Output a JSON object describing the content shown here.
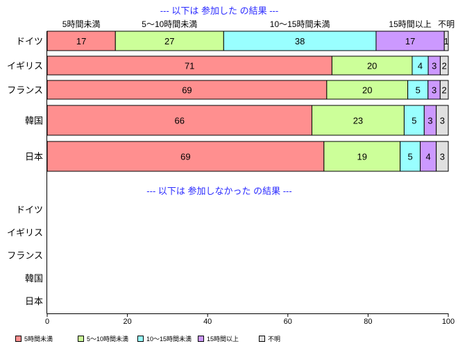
{
  "title_color": "#2B2BFF",
  "chart_data": [
    {
      "type": "bar",
      "horizontal": true,
      "stacked": true,
      "title": "--- 以下は 参加した の結果 ---",
      "categories": [
        "ドイツ",
        "イギリス",
        "フランス",
        "韓国",
        "日本"
      ],
      "series": [
        {
          "name": "5時間未満",
          "color": "#FF8F8F",
          "values": [
            17,
            71,
            69,
            66,
            69
          ]
        },
        {
          "name": "5～10時間未満",
          "color": "#CCFF99",
          "values": [
            27,
            20,
            20,
            23,
            19
          ]
        },
        {
          "name": "10～15時間未満",
          "color": "#99FFFF",
          "values": [
            38,
            4,
            5,
            5,
            5
          ]
        },
        {
          "name": "15時間以上",
          "color": "#CC99FF",
          "values": [
            17,
            3,
            3,
            3,
            4
          ]
        },
        {
          "name": "不明",
          "color": "#E0E0E0",
          "values": [
            1,
            2,
            2,
            3,
            3
          ]
        }
      ],
      "xlim": [
        0,
        100
      ],
      "legend": "bottom-left",
      "grid": false
    },
    {
      "type": "bar",
      "horizontal": true,
      "stacked": true,
      "title": "--- 以下は 参加しなかった の結果 ---",
      "categories": [
        "ドイツ",
        "イギリス",
        "フランス",
        "韓国",
        "日本"
      ],
      "series": [],
      "xlim": [
        0,
        100
      ],
      "xticks": [
        0,
        20,
        40,
        60,
        80,
        100
      ],
      "grid": false
    }
  ]
}
